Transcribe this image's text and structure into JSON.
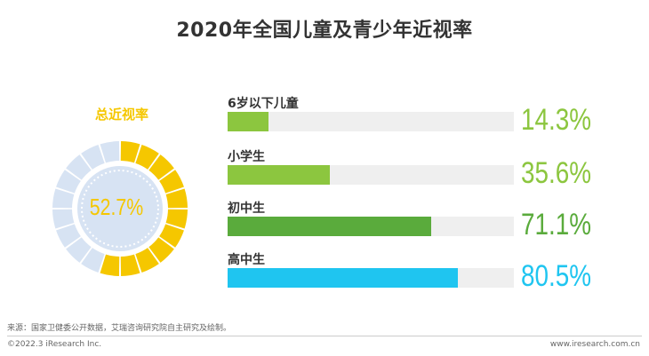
{
  "chart_data": {
    "type": "bar",
    "title": "2020年全国儿童及青少年近视率",
    "donut": {
      "label": "总近视率",
      "value": 52.7,
      "value_text": "52.7%",
      "color": "#f5c700",
      "track_color": "#d7e3f3"
    },
    "categories": [
      "6岁以下儿童",
      "小学生",
      "初中生",
      "高中生"
    ],
    "values": [
      14.3,
      35.6,
      71.1,
      80.5
    ],
    "value_texts": [
      "14.3%",
      "35.6%",
      "71.1%",
      "80.5%"
    ],
    "colors": [
      "#8cc63f",
      "#8cc63f",
      "#5aab3c",
      "#1fc5f0"
    ],
    "track_color": "#efefef",
    "ylim": [
      0,
      100
    ],
    "xlabel": "",
    "ylabel": ""
  },
  "footer": {
    "source": "来源：国家卫健委公开数据，艾瑞咨询研究院自主研究及绘制。",
    "copyright": "©2022.3 iResearch Inc.",
    "website": "www.iresearch.com.cn"
  }
}
